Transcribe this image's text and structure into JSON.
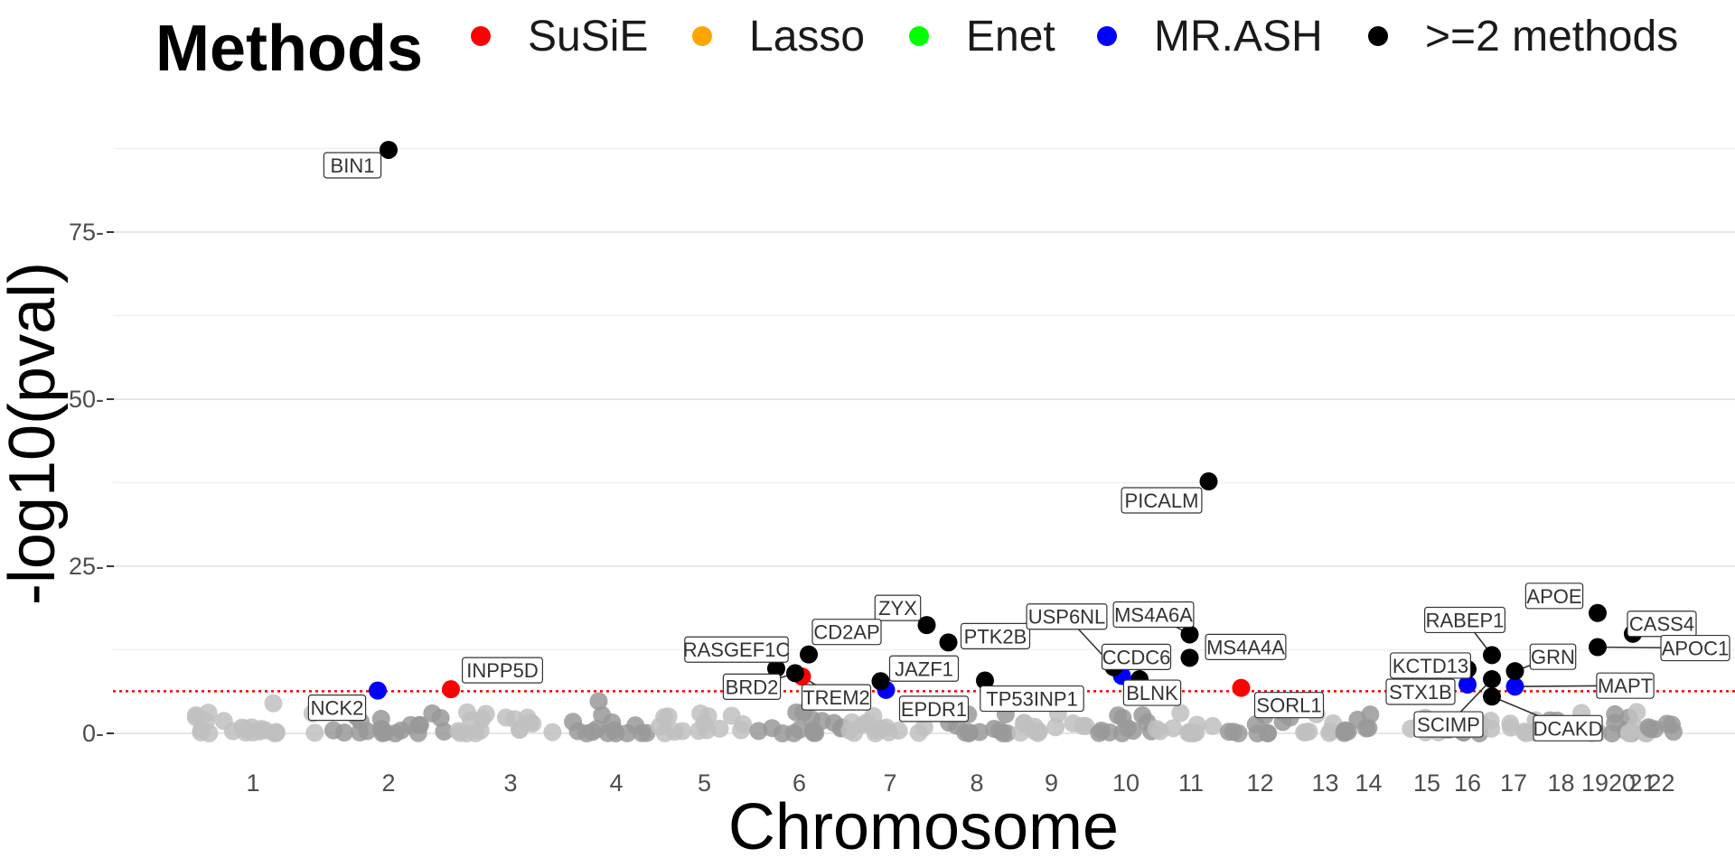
{
  "chart_data": {
    "type": "scatter",
    "xlabel": "Chromosome",
    "ylabel": "-log10(pval)",
    "ylim": [
      -3,
      88
    ],
    "y_ticks": [
      0,
      25,
      50,
      75
    ],
    "threshold": 6.3,
    "grid": true,
    "legend": {
      "title": "Methods",
      "placement": "top",
      "items": [
        {
          "name": "SuSiE",
          "color": "#ff0000"
        },
        {
          "name": "Lasso",
          "color": "#ffa500"
        },
        {
          "name": "Enet",
          "color": "#00ff00"
        },
        {
          "name": "MR.ASH",
          "color": "#0000ff"
        },
        {
          "name": ">=2 methods",
          "color": "#000000"
        }
      ]
    },
    "chromosomes": [
      {
        "label": "1",
        "pos": 1.0
      },
      {
        "label": "2",
        "pos": 2.0
      },
      {
        "label": "3",
        "pos": 2.9
      },
      {
        "label": "4",
        "pos": 3.68
      },
      {
        "label": "5",
        "pos": 4.33
      },
      {
        "label": "6",
        "pos": 5.03
      },
      {
        "label": "7",
        "pos": 5.7
      },
      {
        "label": "8",
        "pos": 6.34
      },
      {
        "label": "9",
        "pos": 6.89
      },
      {
        "label": "10",
        "pos": 7.44
      },
      {
        "label": "11",
        "pos": 7.92
      },
      {
        "label": "12",
        "pos": 8.43
      },
      {
        "label": "13",
        "pos": 8.91
      },
      {
        "label": "14",
        "pos": 9.23
      },
      {
        "label": "15",
        "pos": 9.66
      },
      {
        "label": "16",
        "pos": 9.96
      },
      {
        "label": "17",
        "pos": 10.3
      },
      {
        "label": "18",
        "pos": 10.65
      },
      {
        "label": "19",
        "pos": 10.9
      },
      {
        "label": "20",
        "pos": 11.1
      },
      {
        "label": "21",
        "pos": 11.25
      },
      {
        "label": "22",
        "pos": 11.39
      }
    ],
    "significant_genes": [
      {
        "gene": "BIN1",
        "x": 2.0,
        "y": 87.3,
        "method": ">=2 methods"
      },
      {
        "gene": "PICALM",
        "x": 8.05,
        "y": 37.7,
        "method": ">=2 methods"
      },
      {
        "gene": "APOE",
        "x": 10.92,
        "y": 18.0,
        "method": ">=2 methods"
      },
      {
        "gene": "ZYX",
        "x": 5.97,
        "y": 16.2,
        "method": ">=2 methods"
      },
      {
        "gene": "CASS4",
        "x": 11.18,
        "y": 14.9,
        "method": ">=2 methods"
      },
      {
        "gene": "MS4A6A",
        "x": 7.91,
        "y": 14.8,
        "method": ">=2 methods"
      },
      {
        "gene": "PTK2B",
        "x": 6.13,
        "y": 13.6,
        "method": ">=2 methods"
      },
      {
        "gene": "APOC1",
        "x": 10.92,
        "y": 12.9,
        "method": ">=2 methods"
      },
      {
        "gene": "CD2AP",
        "x": 5.1,
        "y": 11.8,
        "method": ">=2 methods"
      },
      {
        "gene": "RABEP1",
        "x": 10.14,
        "y": 11.7,
        "method": ">=2 methods"
      },
      {
        "gene": "MS4A4A",
        "x": 7.91,
        "y": 11.3,
        "method": ">=2 methods"
      },
      {
        "gene": "USP6NL",
        "x": 7.35,
        "y": 9.9,
        "method": ">=2 methods"
      },
      {
        "gene": "RASGEF1C",
        "x": 4.86,
        "y": 9.7,
        "method": ">=2 methods"
      },
      {
        "gene": "KCTD13",
        "x": 9.96,
        "y": 9.6,
        "method": ">=2 methods"
      },
      {
        "gene": "GRN",
        "x": 10.31,
        "y": 9.3,
        "method": ">=2 methods"
      },
      {
        "gene": "BRD2",
        "x": 5.0,
        "y": 9.0,
        "method": ">=2 methods"
      },
      {
        "gene": "TREM2",
        "x": 5.05,
        "y": 8.5,
        "method": "SuSiE"
      },
      {
        "gene": "CCDC6",
        "x": 7.41,
        "y": 8.6,
        "method": "MR.ASH"
      },
      {
        "gene": "BLNK",
        "x": 7.54,
        "y": 8.1,
        "method": ">=2 methods"
      },
      {
        "gene": "SCIMP",
        "x": 10.14,
        "y": 8.1,
        "method": ">=2 methods"
      },
      {
        "gene": "TP53INP1",
        "x": 6.4,
        "y": 7.9,
        "method": ">=2 methods"
      },
      {
        "gene": "JAZF1",
        "x": 5.63,
        "y": 7.8,
        "method": ">=2 methods"
      },
      {
        "gene": "STX1B",
        "x": 9.96,
        "y": 7.3,
        "method": "MR.ASH"
      },
      {
        "gene": "MAPT",
        "x": 10.31,
        "y": 7.0,
        "method": "MR.ASH"
      },
      {
        "gene": "SORL1",
        "x": 8.29,
        "y": 6.8,
        "method": "SuSiE"
      },
      {
        "gene": "INPP5D",
        "x": 2.46,
        "y": 6.6,
        "method": "SuSiE"
      },
      {
        "gene": "EPDR1",
        "x": 5.67,
        "y": 6.5,
        "method": "MR.ASH"
      },
      {
        "gene": "NCK2",
        "x": 1.92,
        "y": 6.4,
        "method": "MR.ASH"
      },
      {
        "gene": "DCAKD",
        "x": 10.14,
        "y": 5.5,
        "method": ">=2 methods"
      }
    ]
  }
}
